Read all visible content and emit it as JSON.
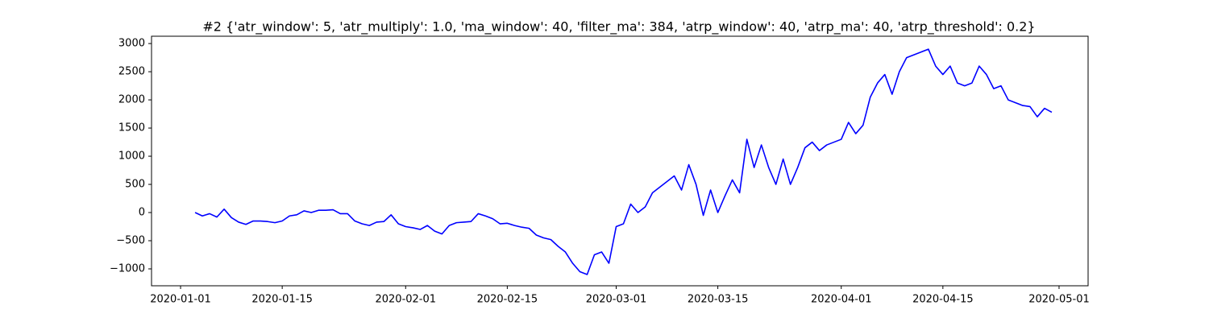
{
  "chart_data": {
    "type": "line",
    "title": "#2 {'atr_window': 5, 'atr_multiply': 1.0, 'ma_window': 40, 'filter_ma': 384, 'atrp_window': 40, 'atrp_ma': 40, 'atrp_threshold': 0.2}",
    "x": [
      "2020-01-03",
      "2020-01-04",
      "2020-01-05",
      "2020-01-06",
      "2020-01-07",
      "2020-01-08",
      "2020-01-09",
      "2020-01-10",
      "2020-01-11",
      "2020-01-12",
      "2020-01-13",
      "2020-01-14",
      "2020-01-15",
      "2020-01-16",
      "2020-01-17",
      "2020-01-18",
      "2020-01-19",
      "2020-01-20",
      "2020-01-21",
      "2020-01-22",
      "2020-01-23",
      "2020-01-24",
      "2020-01-25",
      "2020-01-26",
      "2020-01-27",
      "2020-01-28",
      "2020-01-29",
      "2020-01-30",
      "2020-01-31",
      "2020-02-01",
      "2020-02-02",
      "2020-02-03",
      "2020-02-04",
      "2020-02-05",
      "2020-02-06",
      "2020-02-07",
      "2020-02-08",
      "2020-02-09",
      "2020-02-10",
      "2020-02-11",
      "2020-02-12",
      "2020-02-13",
      "2020-02-14",
      "2020-02-15",
      "2020-02-16",
      "2020-02-17",
      "2020-02-18",
      "2020-02-19",
      "2020-02-20",
      "2020-02-21",
      "2020-02-22",
      "2020-02-23",
      "2020-02-24",
      "2020-02-25",
      "2020-02-26",
      "2020-02-27",
      "2020-02-28",
      "2020-02-29",
      "2020-03-01",
      "2020-03-02",
      "2020-03-03",
      "2020-03-04",
      "2020-03-05",
      "2020-03-06",
      "2020-03-07",
      "2020-03-08",
      "2020-03-09",
      "2020-03-10",
      "2020-03-11",
      "2020-03-12",
      "2020-03-13",
      "2020-03-14",
      "2020-03-15",
      "2020-03-16",
      "2020-03-17",
      "2020-03-18",
      "2020-03-19",
      "2020-03-20",
      "2020-03-21",
      "2020-03-22",
      "2020-03-23",
      "2020-03-24",
      "2020-03-25",
      "2020-03-26",
      "2020-03-27",
      "2020-03-28",
      "2020-03-29",
      "2020-03-30",
      "2020-03-31",
      "2020-04-01",
      "2020-04-02",
      "2020-04-03",
      "2020-04-04",
      "2020-04-05",
      "2020-04-06",
      "2020-04-07",
      "2020-04-08",
      "2020-04-09",
      "2020-04-10",
      "2020-04-11",
      "2020-04-12",
      "2020-04-13",
      "2020-04-14",
      "2020-04-15",
      "2020-04-16",
      "2020-04-17",
      "2020-04-18",
      "2020-04-19",
      "2020-04-20",
      "2020-04-21",
      "2020-04-22",
      "2020-04-23",
      "2020-04-24",
      "2020-04-25",
      "2020-04-26",
      "2020-04-27",
      "2020-04-28",
      "2020-04-29",
      "2020-04-30"
    ],
    "series": [
      {
        "color": "#0000ff",
        "values": [
          0,
          -60,
          -20,
          -80,
          60,
          -90,
          -170,
          -210,
          -150,
          -150,
          -160,
          -180,
          -150,
          -60,
          -40,
          30,
          0,
          40,
          40,
          50,
          -20,
          -20,
          -150,
          -200,
          -230,
          -170,
          -160,
          -40,
          -200,
          -250,
          -270,
          -300,
          -230,
          -330,
          -380,
          -230,
          -180,
          -170,
          -160,
          -20,
          -60,
          -110,
          -200,
          -190,
          -230,
          -260,
          -280,
          -400,
          -450,
          -480,
          -600,
          -700,
          -900,
          -1050,
          -1100,
          -750,
          -700,
          -900,
          -250,
          -200,
          150,
          0,
          100,
          350,
          450,
          550,
          650,
          400,
          850,
          500,
          -50,
          400,
          0,
          300,
          580,
          350,
          1300,
          800,
          1200,
          800,
          500,
          950,
          500,
          800,
          1150,
          1250,
          1100,
          1200,
          1250,
          1300,
          1600,
          1400,
          1550,
          2050,
          2300,
          2450,
          2100,
          2500,
          2750,
          2800,
          2850,
          2900,
          2600,
          2450,
          2600,
          2300,
          2250,
          2300,
          2600,
          2450,
          2200,
          2250,
          2000,
          1950,
          1900,
          1880,
          1700,
          1850,
          1780
        ]
      }
    ],
    "xlim": [
      "2019-12-28",
      "2020-05-05"
    ],
    "xticks": [
      "2020-01-01",
      "2020-01-15",
      "2020-02-01",
      "2020-02-15",
      "2020-03-01",
      "2020-03-15",
      "2020-04-01",
      "2020-04-15",
      "2020-05-01"
    ],
    "ylim": [
      -1300,
      3130
    ],
    "yticks": [
      {
        "value": -1000,
        "label": "−1000"
      },
      {
        "value": -500,
        "label": "−500"
      },
      0,
      500,
      1000,
      1500,
      2000,
      2500,
      3000
    ],
    "grid": false
  }
}
